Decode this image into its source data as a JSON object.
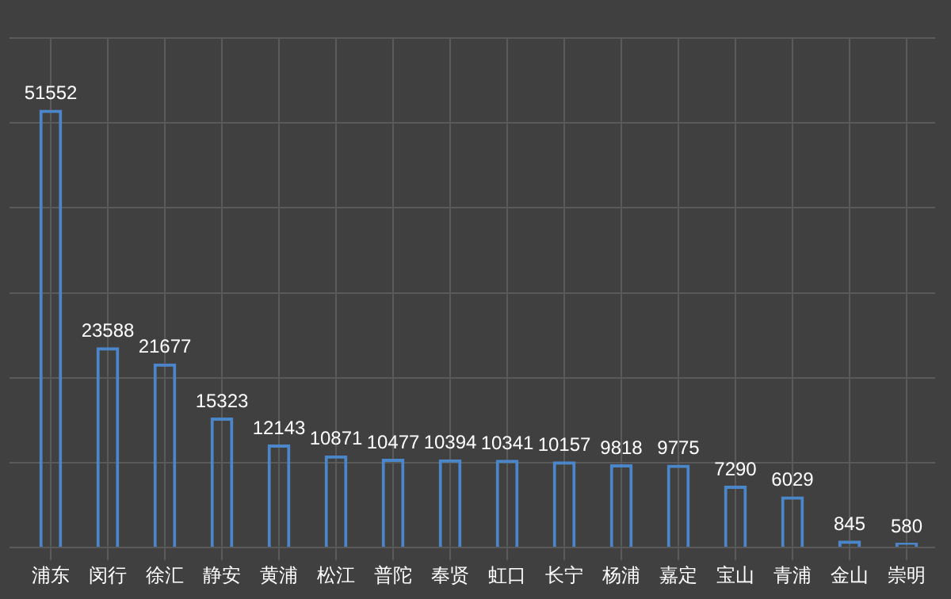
{
  "chart_data": {
    "type": "bar",
    "categories": [
      "浦东",
      "闵行",
      "徐汇",
      "静安",
      "黄浦",
      "松江",
      "普陀",
      "奉贤",
      "虹口",
      "长宁",
      "杨浦",
      "嘉定",
      "宝山",
      "青浦",
      "金山",
      "崇明"
    ],
    "values": [
      51552,
      23588,
      21677,
      15323,
      12143,
      10871,
      10477,
      10394,
      10341,
      10157,
      9818,
      9775,
      7290,
      6029,
      845,
      580
    ],
    "color": "#4a86c8",
    "data_labels": true,
    "grid": true,
    "tick_labels": "x",
    "legend": false
  }
}
